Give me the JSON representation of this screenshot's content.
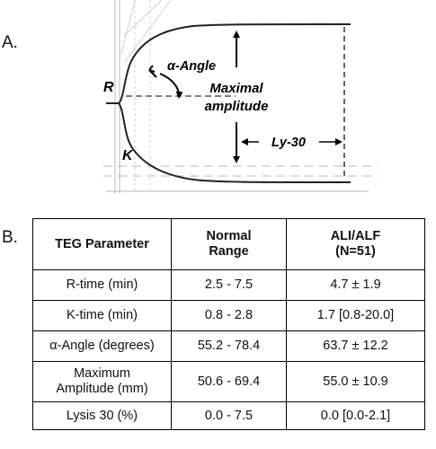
{
  "panel_a": {
    "label": "A.",
    "annotations": {
      "r": "R",
      "k": "K",
      "alpha_angle": "α-Angle",
      "maximal_line1": "Maximal",
      "maximal_line2": "amplitude",
      "ly30": "Ly-30"
    }
  },
  "panel_b": {
    "label": "B.",
    "headers": {
      "parameter": "TEG Parameter",
      "normal_line1": "Normal",
      "normal_line2": "Range",
      "ali_line1": "ALI/ALF",
      "ali_line2": "(N=51)"
    },
    "rows": [
      {
        "parameter": "R-time (min)",
        "normal": "2.5 - 7.5",
        "ali": "4.7 ± 1.9"
      },
      {
        "parameter": "K-time (min)",
        "normal": "0.8 - 2.8",
        "ali": "1.7 [0.8-20.0]"
      },
      {
        "parameter": "α-Angle (degrees)",
        "normal": "55.2 - 78.4",
        "ali": "63.7 ± 12.2"
      },
      {
        "parameter_line1": "Maximum",
        "parameter_line2": "Amplitude (mm)",
        "normal": "50.6 - 69.4",
        "ali": "55.0 ± 10.9"
      },
      {
        "parameter": "Lysis 30 (%)",
        "normal": "0.0 - 7.5",
        "ali": "0.0 [0.0-2.1]"
      }
    ]
  }
}
